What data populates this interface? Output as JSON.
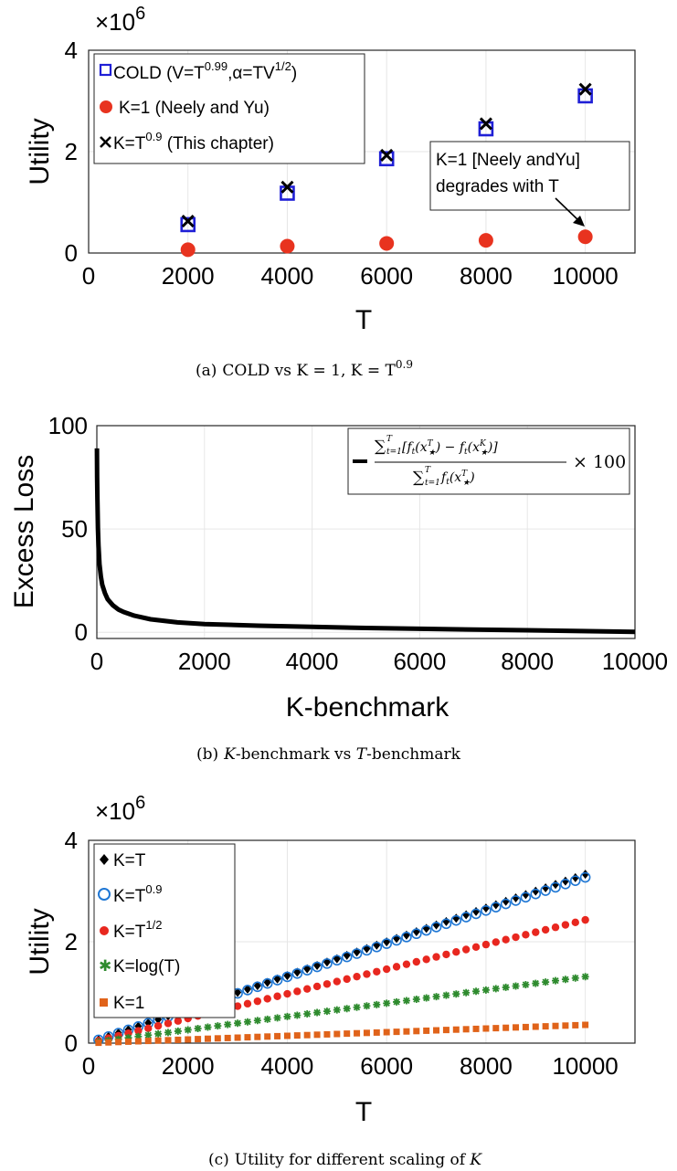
{
  "colors": {
    "blue": "#1f1fd6",
    "red": "#e8331f",
    "black": "#000000",
    "green": "#2e8b2e",
    "orange": "#e0631a"
  },
  "chart_data": [
    {
      "type": "scatter",
      "multiplier": "×10",
      "multiplier_exp": "6",
      "xlabel": "T",
      "ylabel": "Utility",
      "xlim": [
        0,
        11000
      ],
      "ylim": [
        0,
        4000000
      ],
      "xticks": [
        "0",
        "2000",
        "4000",
        "6000",
        "8000",
        "10000"
      ],
      "yticks": [
        "0",
        "2",
        "4"
      ],
      "x": [
        2000,
        4000,
        6000,
        8000,
        10000
      ],
      "series": [
        {
          "name": "COLD (V=T",
          "name_sup": "0.99",
          "name_mid": ",α=TV",
          "name_sup2": "1/2",
          "name_end": ")",
          "marker": "square",
          "color": "#1f1fd6",
          "values": [
            560000,
            1180000,
            1860000,
            2450000,
            3100000
          ]
        },
        {
          "name": "K=1 (Neely and Yu)",
          "marker": "circle",
          "color": "#e8331f",
          "values": [
            65000,
            135000,
            190000,
            250000,
            320000
          ]
        },
        {
          "name": "K=T",
          "name_sup": "0.9",
          "name_end": " (This chapter)",
          "marker": "x",
          "color": "#000000",
          "values": [
            630000,
            1300000,
            1930000,
            2550000,
            3230000
          ]
        }
      ],
      "annotation": {
        "line1": "K=1 [Neely andYu]",
        "line2": "degrades with T",
        "target_x": 10000,
        "target_y": 320000
      },
      "caption": {
        "prefix": "(a)",
        "text": "COLD  vs K = 1, K = T",
        "sup": "0.9"
      }
    },
    {
      "type": "line",
      "xlabel": "K-benchmark",
      "ylabel": "Excess Loss",
      "xlim": [
        0,
        10000
      ],
      "ylim": [
        -3,
        100
      ],
      "xticks": [
        "0",
        "2000",
        "4000",
        "6000",
        "8000",
        "10000"
      ],
      "yticks": [
        "0",
        "50",
        "100"
      ],
      "series": [
        {
          "name": "excess-loss",
          "color": "#000000",
          "x": [
            1,
            5,
            10,
            20,
            30,
            50,
            75,
            100,
            150,
            200,
            300,
            400,
            500,
            700,
            1000,
            1500,
            2000,
            3000,
            4000,
            5000,
            6000,
            7000,
            8000,
            9000,
            10000
          ],
          "y": [
            89,
            75,
            65,
            50,
            42,
            33,
            27,
            23,
            19,
            16,
            13,
            11,
            9.8,
            8,
            6.3,
            4.8,
            4.0,
            3.2,
            2.6,
            2.1,
            1.7,
            1.3,
            1.0,
            0.6,
            0.2
          ]
        }
      ],
      "legend_formula": "× 100",
      "caption": {
        "prefix": "(b)",
        "k": "K",
        "mid": "-benchmark vs ",
        "t": "T",
        "end": "-benchmark"
      }
    },
    {
      "type": "scatter",
      "multiplier": "×10",
      "multiplier_exp": "6",
      "xlabel": "T",
      "ylabel": "Utility",
      "xlim": [
        0,
        11000
      ],
      "ylim": [
        0,
        4000000
      ],
      "xticks": [
        "0",
        "2000",
        "4000",
        "6000",
        "8000",
        "10000"
      ],
      "yticks": [
        "0",
        "2",
        "4"
      ],
      "x_start": 200,
      "x_end": 10000,
      "x_step": 200,
      "series": [
        {
          "name": "K=T",
          "marker": "diamond",
          "color": "#000000",
          "end_value": 3330000
        },
        {
          "name": "K=T",
          "name_sup": "0.9",
          "marker": "open-circle",
          "color": "#1f77d4",
          "end_value": 3270000
        },
        {
          "name": "K=T",
          "name_sup": "1/2",
          "marker": "circle",
          "color": "#e8271f",
          "end_value": 2430000
        },
        {
          "name": "K=log(T)",
          "marker": "star",
          "color": "#2e8b2e",
          "end_value": 1310000
        },
        {
          "name": "K=1",
          "marker": "square",
          "color": "#e0631a",
          "end_value": 360000
        }
      ],
      "caption": {
        "prefix": "(c)",
        "text": "Utility for different scaling of ",
        "k": "K"
      }
    }
  ]
}
